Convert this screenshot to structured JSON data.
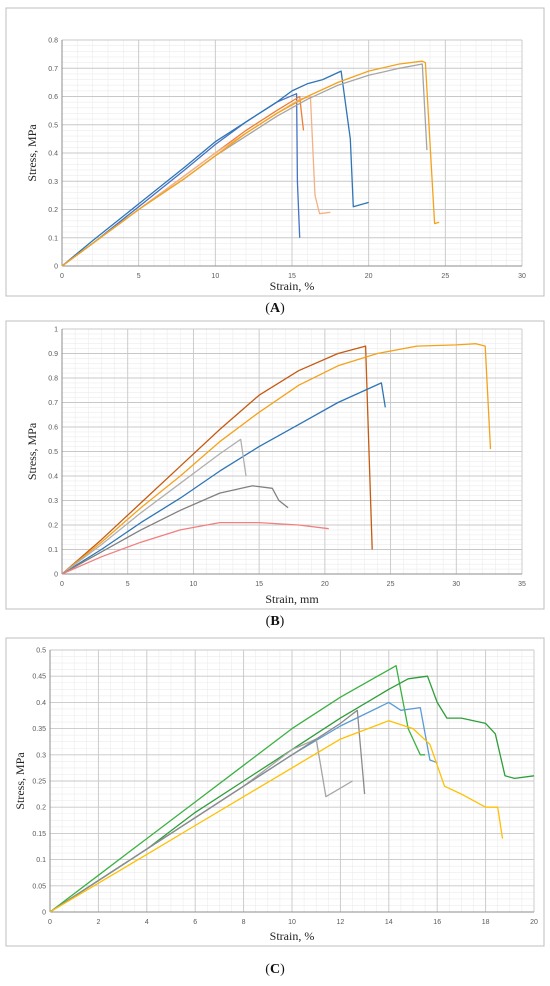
{
  "chart_data": [
    {
      "type": "line",
      "panel_label": "A",
      "xlabel": "Strain, %",
      "ylabel": "Stress, MPa",
      "xlim": [
        0,
        30
      ],
      "ylim": [
        0,
        0.8
      ],
      "xticks": [
        0,
        5,
        10,
        15,
        20,
        25,
        30
      ],
      "xtick_labels": [
        "0",
        "5",
        "10",
        "15",
        "20",
        "25",
        "30"
      ],
      "yticks": [
        0,
        0.1,
        0.2,
        0.3,
        0.4,
        0.5,
        0.6,
        0.7,
        0.8
      ],
      "ytick_labels": [
        "0",
        "0.1",
        "0.2",
        "0.3",
        "0.4",
        "0.5",
        "0.6",
        "0.7",
        "0.8"
      ],
      "grid": true,
      "minor_x": 1,
      "minor_y": 0.02,
      "series": [
        {
          "color": "#4472c4",
          "x": [
            0,
            2,
            5,
            8,
            10,
            12,
            14,
            15.3,
            15.35,
            15.5
          ],
          "y": [
            0,
            0.08,
            0.21,
            0.34,
            0.43,
            0.51,
            0.58,
            0.61,
            0.3,
            0.1
          ]
        },
        {
          "color": "#ed7d31",
          "x": [
            0,
            2,
            5,
            8,
            10,
            12,
            14,
            15.5,
            15.6,
            15.75
          ],
          "y": [
            0,
            0.08,
            0.2,
            0.32,
            0.4,
            0.48,
            0.55,
            0.6,
            0.55,
            0.48
          ]
        },
        {
          "color": "#2e75b6",
          "x": [
            0,
            2,
            5,
            8,
            10,
            12,
            14,
            15,
            16,
            17,
            18.2,
            18.8,
            19.0,
            20.0
          ],
          "y": [
            0,
            0.09,
            0.22,
            0.35,
            0.44,
            0.51,
            0.58,
            0.62,
            0.645,
            0.66,
            0.69,
            0.45,
            0.21,
            0.225
          ]
        },
        {
          "color": "#f4b183",
          "x": [
            0,
            2,
            5,
            8,
            10,
            12,
            14,
            15.5,
            16.2,
            16.5,
            16.8,
            17.5
          ],
          "y": [
            0,
            0.08,
            0.2,
            0.32,
            0.4,
            0.47,
            0.54,
            0.59,
            0.6,
            0.25,
            0.185,
            0.19
          ]
        },
        {
          "color": "#a5a5a5",
          "x": [
            0,
            2,
            5,
            8,
            10,
            12,
            14,
            16,
            18,
            20,
            22,
            23.5,
            23.8
          ],
          "y": [
            0,
            0.08,
            0.2,
            0.31,
            0.39,
            0.46,
            0.53,
            0.59,
            0.64,
            0.675,
            0.7,
            0.715,
            0.41
          ]
        },
        {
          "color": "#f5a21b",
          "x": [
            0,
            2,
            5,
            8,
            10,
            12,
            14,
            16,
            18,
            20,
            22,
            23.5,
            23.7,
            24.3,
            24.6
          ],
          "y": [
            0,
            0.08,
            0.2,
            0.31,
            0.39,
            0.47,
            0.54,
            0.6,
            0.65,
            0.69,
            0.715,
            0.725,
            0.72,
            0.15,
            0.155
          ]
        }
      ]
    },
    {
      "type": "line",
      "panel_label": "B",
      "xlabel": "Strain, mm",
      "ylabel": "Stress, MPa",
      "xlim": [
        0,
        35
      ],
      "ylim": [
        0,
        1
      ],
      "xticks": [
        0,
        5,
        10,
        15,
        20,
        25,
        30,
        35
      ],
      "xtick_labels": [
        "0",
        "5",
        "10",
        "15",
        "20",
        "25",
        "30",
        "35"
      ],
      "yticks": [
        0,
        0.1,
        0.2,
        0.3,
        0.4,
        0.5,
        0.6,
        0.7,
        0.8,
        0.9,
        1
      ],
      "ytick_labels": [
        "0",
        "0.1",
        "0.2",
        "0.3",
        "0.4",
        "0.5",
        "0.6",
        "0.7",
        "0.8",
        "0.9",
        "1"
      ],
      "grid": true,
      "minor_x": 1,
      "minor_y": 0.02,
      "series": [
        {
          "color": "#c55a11",
          "x": [
            0,
            3,
            6,
            9,
            12,
            15,
            18,
            21,
            23.1,
            23.3,
            23.6
          ],
          "y": [
            0,
            0.14,
            0.29,
            0.44,
            0.59,
            0.73,
            0.83,
            0.9,
            0.93,
            0.6,
            0.1
          ]
        },
        {
          "color": "#f5a21b",
          "x": [
            0,
            3,
            6,
            9,
            12,
            15,
            18,
            21,
            24,
            27,
            30,
            31.5,
            32.2,
            32.6
          ],
          "y": [
            0,
            0.13,
            0.27,
            0.4,
            0.54,
            0.66,
            0.77,
            0.85,
            0.9,
            0.93,
            0.935,
            0.94,
            0.93,
            0.51
          ]
        },
        {
          "color": "#2e75b6",
          "x": [
            0,
            3,
            6,
            9,
            12,
            15,
            18,
            21,
            24.3,
            24.6
          ],
          "y": [
            0,
            0.1,
            0.21,
            0.31,
            0.42,
            0.52,
            0.61,
            0.7,
            0.78,
            0.68
          ]
        },
        {
          "color": "#b0b0b0",
          "x": [
            0,
            3,
            6,
            9,
            12,
            13.6,
            14.0
          ],
          "y": [
            0,
            0.12,
            0.25,
            0.37,
            0.49,
            0.55,
            0.4
          ]
        },
        {
          "color": "#808080",
          "x": [
            0,
            3,
            6,
            9,
            12,
            14.5,
            16,
            16.5,
            17.2
          ],
          "y": [
            0,
            0.09,
            0.18,
            0.26,
            0.33,
            0.36,
            0.35,
            0.3,
            0.27
          ]
        },
        {
          "color": "#f08080",
          "x": [
            0,
            3,
            6,
            9,
            12,
            15,
            18,
            20.3
          ],
          "y": [
            0,
            0.07,
            0.13,
            0.18,
            0.21,
            0.21,
            0.2,
            0.185
          ]
        }
      ]
    },
    {
      "type": "line",
      "panel_label": "C",
      "xlabel": "Strain, %",
      "ylabel": "Stress, MPa",
      "xlim": [
        0,
        20
      ],
      "ylim": [
        0,
        0.5
      ],
      "xticks": [
        0,
        2,
        4,
        6,
        8,
        10,
        12,
        14,
        16,
        18,
        20
      ],
      "xtick_labels": [
        "0",
        "2",
        "4",
        "6",
        "8",
        "10",
        "12",
        "14",
        "16",
        "18",
        "20"
      ],
      "yticks": [
        0,
        0.05,
        0.1,
        0.15,
        0.2,
        0.25,
        0.3,
        0.35,
        0.4,
        0.45,
        0.5
      ],
      "ytick_labels": [
        "0",
        "0.05",
        "0.1",
        "0.15",
        "0.2",
        "0.25",
        "0.3",
        "0.35",
        "0.4",
        "0.45",
        "0.5"
      ],
      "grid": true,
      "minor_x": 0.5,
      "minor_y": 0.0125,
      "series": [
        {
          "color": "#3cb043",
          "x": [
            0,
            2,
            4,
            6,
            8,
            10,
            12,
            14.3,
            14.8,
            15.3,
            15.5
          ],
          "y": [
            0,
            0.07,
            0.14,
            0.21,
            0.28,
            0.35,
            0.41,
            0.47,
            0.35,
            0.3,
            0.3
          ]
        },
        {
          "color": "#2e9e3a",
          "x": [
            0,
            2,
            4,
            6,
            8,
            10,
            12,
            14,
            14.8,
            15.6,
            16.0,
            16.4,
            17.0,
            18.0,
            18.4,
            18.8,
            19.2,
            20.0
          ],
          "y": [
            0,
            0.06,
            0.12,
            0.19,
            0.25,
            0.31,
            0.37,
            0.425,
            0.445,
            0.45,
            0.4,
            0.37,
            0.37,
            0.36,
            0.34,
            0.26,
            0.255,
            0.26
          ]
        },
        {
          "color": "#5b9bd5",
          "x": [
            0,
            2,
            4,
            6,
            8,
            10,
            12,
            14,
            14.5,
            15.3,
            15.7,
            16.0
          ],
          "y": [
            0,
            0.06,
            0.12,
            0.18,
            0.24,
            0.3,
            0.355,
            0.4,
            0.385,
            0.39,
            0.29,
            0.285
          ]
        },
        {
          "color": "#a5a5a5",
          "x": [
            0,
            2,
            4,
            6,
            8,
            10,
            11.0,
            11.4,
            12.5
          ],
          "y": [
            0,
            0.06,
            0.12,
            0.18,
            0.24,
            0.31,
            0.33,
            0.22,
            0.25
          ]
        },
        {
          "color": "#8c8c8c",
          "x": [
            0,
            2,
            4,
            6,
            8,
            10,
            12,
            12.7,
            13.0
          ],
          "y": [
            0,
            0.06,
            0.12,
            0.18,
            0.24,
            0.3,
            0.36,
            0.385,
            0.225
          ]
        },
        {
          "color": "#ffc000",
          "x": [
            0,
            2,
            4,
            6,
            8,
            10,
            12,
            14,
            15,
            15.7,
            16.3,
            17.0,
            18.0,
            18.5,
            18.7
          ],
          "y": [
            0,
            0.055,
            0.11,
            0.165,
            0.22,
            0.275,
            0.33,
            0.365,
            0.35,
            0.32,
            0.24,
            0.225,
            0.2,
            0.2,
            0.14
          ]
        }
      ]
    }
  ]
}
